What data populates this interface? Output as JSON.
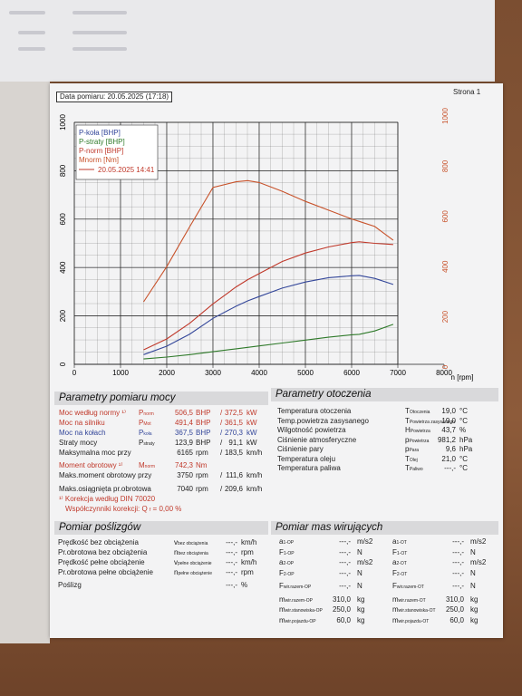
{
  "header": {
    "date": "Data pomiaru: 20.05.2025 (17:18)",
    "page": "Strona 1"
  },
  "chart_data": {
    "type": "line",
    "x": [
      1500,
      2000,
      2500,
      3000,
      3500,
      3750,
      4000,
      4500,
      5000,
      5500,
      6000,
      6165,
      6500,
      6900
    ],
    "xlim": [
      0,
      8000
    ],
    "xticks": [
      0,
      1000,
      2000,
      3000,
      4000,
      5000,
      6000,
      7000,
      8000
    ],
    "xlabel": "n [rpm]",
    "ylim": [
      0,
      1000
    ],
    "yticks": [
      0,
      200,
      400,
      600,
      800,
      1000
    ],
    "y2lim": [
      0,
      1000
    ],
    "y2ticks": [
      0,
      200,
      400,
      600,
      800,
      1000
    ],
    "grid": true,
    "legend": "upper left",
    "legend_note": "20.05.2025 14:41",
    "series": [
      {
        "name": "P-koła [BHP]",
        "color": "#34479a",
        "values": [
          40,
          75,
          125,
          190,
          240,
          262,
          280,
          315,
          340,
          358,
          366,
          367.5,
          355,
          330
        ]
      },
      {
        "name": "P-straty [BHP]",
        "color": "#2f7a2a",
        "values": [
          22,
          30,
          40,
          52,
          64,
          70,
          76,
          88,
          100,
          112,
          122,
          124,
          138,
          165
        ]
      },
      {
        "name": "P-norm [BHP]",
        "color": "#c0392b",
        "values": [
          60,
          105,
          170,
          250,
          320,
          350,
          375,
          425,
          460,
          485,
          503,
          506.5,
          500,
          495
        ]
      },
      {
        "name": "Mnorm [Nm]",
        "color": "#c8522a",
        "axis": "y2",
        "values": [
          260,
          400,
          560,
          715,
          738,
          742.5,
          735,
          700,
          660,
          625,
          590,
          580,
          560,
          505
        ]
      }
    ]
  },
  "power": {
    "title": "Parametry pomiaru mocy",
    "rows": [
      {
        "label": "Moc według normy ¹⁾",
        "sym": "P",
        "sub": "norm",
        "v1": "506,5",
        "u1": "BHP",
        "v2": "372,5",
        "u2": "kW",
        "color": "#c0392b"
      },
      {
        "label": "Moc na silniku",
        "sym": "P",
        "sub": "Mot",
        "v1": "491,4",
        "u1": "BHP",
        "v2": "361,5",
        "u2": "kW",
        "color": "#c0392b"
      },
      {
        "label": "Moc na kołach",
        "sym": "P",
        "sub": "koła",
        "v1": "367,5",
        "u1": "BHP",
        "v2": "270,3",
        "u2": "kW",
        "color": "#34479a"
      },
      {
        "label": "Straty mocy",
        "sym": "P",
        "sub": "straty",
        "v1": "123,9",
        "u1": "BHP",
        "v2": "91,1",
        "u2": "kW"
      },
      {
        "label": "Maksymalna moc przy",
        "v1": "6165",
        "u1": "rpm",
        "v2": "183,5",
        "u2": "km/h"
      },
      {
        "label": "Moment obrotowy ¹⁾",
        "sym": "M",
        "sub": "norm",
        "v1": "742,3",
        "u1": "Nm",
        "color": "#c0392b"
      },
      {
        "label": "Maks.moment obrotowy przy",
        "v1": "3750",
        "u1": "rpm",
        "v2": "111,6",
        "u2": "km/h"
      },
      {
        "label": "Maks.osiągnięta pr.obrotowa",
        "v1": "7040",
        "u1": "rpm",
        "v2": "209,6",
        "u2": "km/h"
      }
    ],
    "note": "¹⁾ Korekcja według DIN 70020",
    "factor_label": "Współczynniki korekcji: Q",
    "factor_sub": "f",
    "factor_value": "=    0,00 %"
  },
  "ambient": {
    "title": "Parametry otoczenia",
    "rows": [
      {
        "label": "Temperatura otoczenia",
        "sym": "T",
        "sub": "Otoczenia",
        "v": "19,0",
        "u": "°C"
      },
      {
        "label": "Temp.powietrza zasysanego",
        "sym": "T",
        "sub": "Powietrza zasysanego",
        "v": "19,0",
        "u": "°C"
      },
      {
        "label": "Wilgotność powietrza",
        "sym": "H",
        "sub": "Powietrza",
        "v": "43,7",
        "u": "%"
      },
      {
        "label": "Ciśnienie atmosferyczne",
        "sym": "p",
        "sub": "Powietrza",
        "v": "981,2",
        "u": "hPa"
      },
      {
        "label": "Ciśnienie pary",
        "sym": "p",
        "sub": "Para",
        "v": "9,6",
        "u": "hPa"
      },
      {
        "label": "Temperatura oleju",
        "sym": "T",
        "sub": "Olej",
        "v": "21,0",
        "u": "°C"
      },
      {
        "label": "Temperatura paliwa",
        "sym": "T",
        "sub": "Paliwo",
        "v": "---,-",
        "u": "°C"
      }
    ]
  },
  "slip": {
    "title": "Pomiar poślizgów",
    "rows": [
      {
        "label": "Prędkość bez obciążenia",
        "sym": "v",
        "sub": "bez obciążenia",
        "v": "---,-",
        "u": "km/h"
      },
      {
        "label": "Pr.obrotowa bez obciążenia",
        "sym": "n",
        "sub": "bez obciążenia",
        "v": "---,-",
        "u": "rpm"
      },
      {
        "label": "Prędkość pełne obciążenie",
        "sym": "v",
        "sub": "pełne obciążenie",
        "v": "---,-",
        "u": "km/h"
      },
      {
        "label": "Pr.obrotowa pełne obciążenie",
        "sym": "n",
        "sub": "pełne obciążenie",
        "v": "---,-",
        "u": "rpm"
      },
      {
        "label": "Poślizg",
        "v": "---,-",
        "u": "%"
      }
    ]
  },
  "masses": {
    "title": "Pomiar mas wirujących",
    "rows": [
      [
        {
          "sym": "a",
          "sub": "1-OP",
          "v": "---,-",
          "u": "m/s2"
        },
        {
          "sym": "a",
          "sub": "1-OT",
          "v": "---,-",
          "u": "m/s2"
        }
      ],
      [
        {
          "sym": "F",
          "sub": "1-OP",
          "v": "---,-",
          "u": "N"
        },
        {
          "sym": "F",
          "sub": "1-OT",
          "v": "---,-",
          "u": "N"
        }
      ],
      [
        {
          "sym": "a",
          "sub": "2-OP",
          "v": "---,-",
          "u": "m/s2"
        },
        {
          "sym": "a",
          "sub": "2-OT",
          "v": "---,-",
          "u": "m/s2"
        }
      ],
      [
        {
          "sym": "F",
          "sub": "2-OP",
          "v": "---,-",
          "u": "N"
        },
        {
          "sym": "F",
          "sub": "2-OT",
          "v": "---,-",
          "u": "N"
        }
      ],
      [
        {
          "sym": "F",
          "sub": "wir.razem-OP",
          "v": "---,-",
          "u": "N"
        },
        {
          "sym": "F",
          "sub": "wir.razem-OT",
          "v": "---,-",
          "u": "N"
        }
      ],
      [
        {
          "sym": "m",
          "sub": "wir.razem-OP",
          "v": "310,0",
          "u": "kg"
        },
        {
          "sym": "m",
          "sub": "wir.razem-OT",
          "v": "310,0",
          "u": "kg"
        }
      ],
      [
        {
          "sym": "m",
          "sub": "wir.stanowiska-OP",
          "v": "250,0",
          "u": "kg"
        },
        {
          "sym": "m",
          "sub": "wir.stanowiska-OT",
          "v": "250,0",
          "u": "kg"
        }
      ],
      [
        {
          "sym": "m",
          "sub": "wir.pojazdu-OP",
          "v": "60,0",
          "u": "kg"
        },
        {
          "sym": "m",
          "sub": "wir.pojazdu-OT",
          "v": "60,0",
          "u": "kg"
        }
      ]
    ]
  }
}
